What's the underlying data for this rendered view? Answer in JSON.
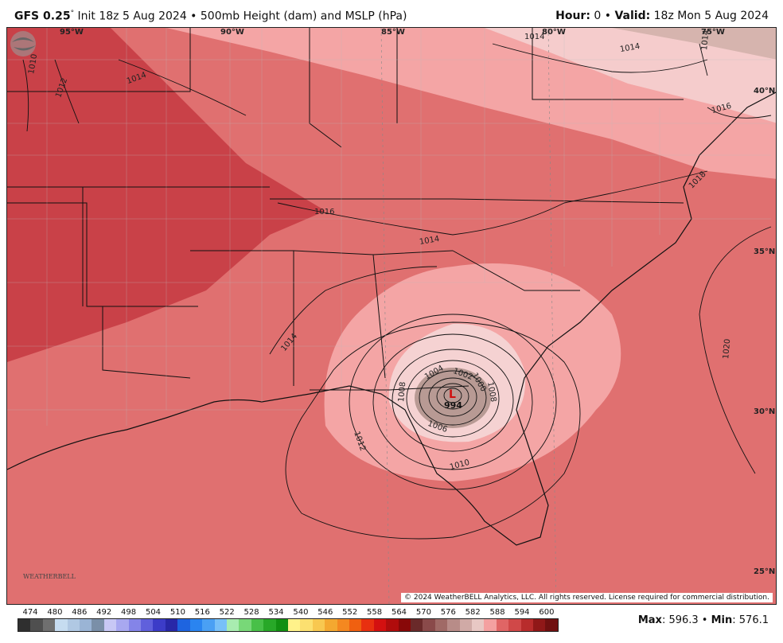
{
  "header": {
    "model": "GFS 0.25",
    "degree": "°",
    "init": " Init 18z 5 Aug 2024 • 500mb Height (dam) and MSLP (hPa)",
    "hour_label": "Hour:",
    "hour_value": " 0 • ",
    "valid_label": "Valid:",
    "valid_value": " 18z Mon 5 Aug 2024"
  },
  "map": {
    "longitudes": [
      "95°W",
      "90°W",
      "85°W",
      "80°W",
      "75°W"
    ],
    "latitudes": [
      "40°N",
      "35°N",
      "30°N",
      "25°N"
    ],
    "isobar_labels": [
      "1010",
      "1012",
      "1014",
      "1014",
      "1014",
      "1016",
      "1014",
      "1014",
      "1016",
      "1018",
      "1020",
      "1014",
      "1012",
      "1010",
      "1008",
      "1006",
      "1004",
      "1002",
      "1000",
      "1008"
    ],
    "low_center_value": "994",
    "low_marker": "L",
    "copyright": "© 2024 WeatherBELL Analytics, LLC. All rights reserved. License required for commercial distribution.",
    "logo_text": "WEATHERBELL",
    "colors": {
      "ocean_fill": "#e06565",
      "height_588": "#e07070",
      "height_594": "#c94148",
      "height_582": "#f4a5a5",
      "height_576": "#f5d2d2",
      "low_core": "#b89a94"
    }
  },
  "colorbar": {
    "labels": [
      "474",
      "480",
      "486",
      "492",
      "498",
      "504",
      "510",
      "516",
      "522",
      "528",
      "534",
      "540",
      "546",
      "552",
      "558",
      "564",
      "570",
      "576",
      "582",
      "588",
      "594",
      "600"
    ],
    "colors": [
      "#2f2f2f",
      "#4f4f4f",
      "#6f6f6f",
      "#c6dcf0",
      "#b0c8e3",
      "#9ab4d5",
      "#7a8fa8",
      "#c8c8f5",
      "#a8a8f0",
      "#8484e8",
      "#6060dc",
      "#3c3cc8",
      "#2828a8",
      "#1e64e0",
      "#2a84f0",
      "#4aa0f4",
      "#78c0f8",
      "#a8ecb0",
      "#78d878",
      "#48c048",
      "#28a828",
      "#129012",
      "#fff28a",
      "#fce070",
      "#f8c850",
      "#f4a830",
      "#f48820",
      "#f06010",
      "#e83010",
      "#d41010",
      "#b00c0c",
      "#880808",
      "#6a2a2a",
      "#8a4a4a",
      "#a06a66",
      "#b88c88",
      "#d0aaa6",
      "#e8c8c4",
      "#f4a0a0",
      "#e06565",
      "#d04848",
      "#b82c2c",
      "#901818",
      "#701010"
    ]
  },
  "stats": {
    "max_label": "Max",
    "max_value": ": 596.3 • ",
    "min_label": "Min",
    "min_value": ": 576.1"
  }
}
